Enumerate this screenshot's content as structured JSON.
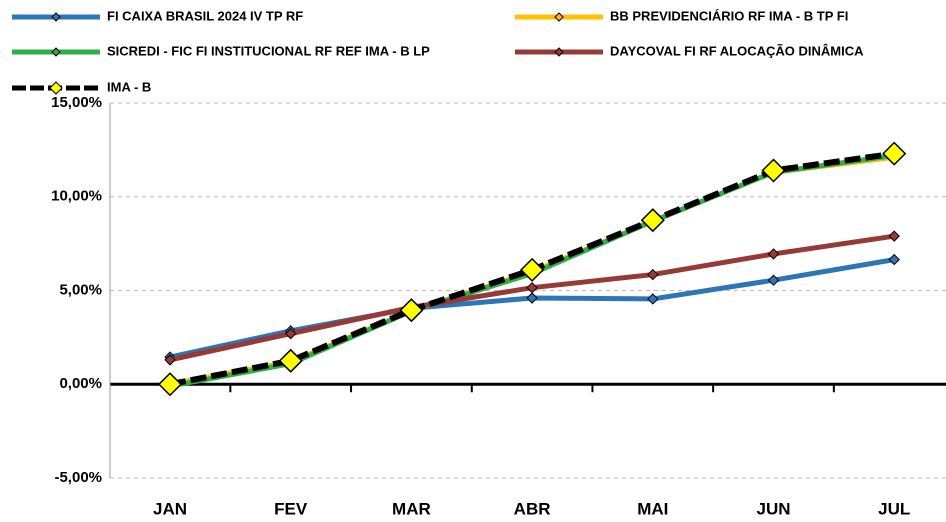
{
  "chart_data": {
    "type": "line",
    "categories": [
      "JAN",
      "FEV",
      "MAR",
      "ABR",
      "MAI",
      "JUN",
      "JUL"
    ],
    "series": [
      {
        "name": "FI CAIXA BRASIL 2024 IV TP RF",
        "color": "#2e75b6",
        "values": [
          1.45,
          2.85,
          4.05,
          4.6,
          4.55,
          5.55,
          6.65
        ]
      },
      {
        "name": "BB PREVIDENCIÁRIO RF IMA - B TP FI",
        "color": "#ffc000",
        "values": [
          0.0,
          1.2,
          3.9,
          6.0,
          8.7,
          11.3,
          12.1
        ]
      },
      {
        "name": "SICREDI - FIC FI INSTITUCIONAL RF REF IMA - B LP",
        "color": "#2fae4a",
        "values": [
          -0.1,
          1.1,
          3.9,
          5.9,
          8.7,
          11.3,
          12.2
        ]
      },
      {
        "name": "DAYCOVAL FI RF ALOCAÇÃO DINÂMICA",
        "color": "#963a36",
        "values": [
          1.3,
          2.7,
          4.1,
          5.15,
          5.85,
          6.95,
          7.9
        ]
      },
      {
        "name": "IMA - B",
        "color": "#000000",
        "values": [
          0.0,
          1.25,
          3.95,
          6.1,
          8.75,
          11.4,
          12.3
        ]
      }
    ],
    "ylim": [
      -5,
      15
    ],
    "yticks": [
      {
        "value": -5,
        "label": "-5,00%"
      },
      {
        "value": 0,
        "label": "0,00%"
      },
      {
        "value": 5,
        "label": "5,00%"
      },
      {
        "value": 10,
        "label": "10,00%"
      },
      {
        "value": 15,
        "label": "15,00%"
      }
    ],
    "grid": true
  }
}
